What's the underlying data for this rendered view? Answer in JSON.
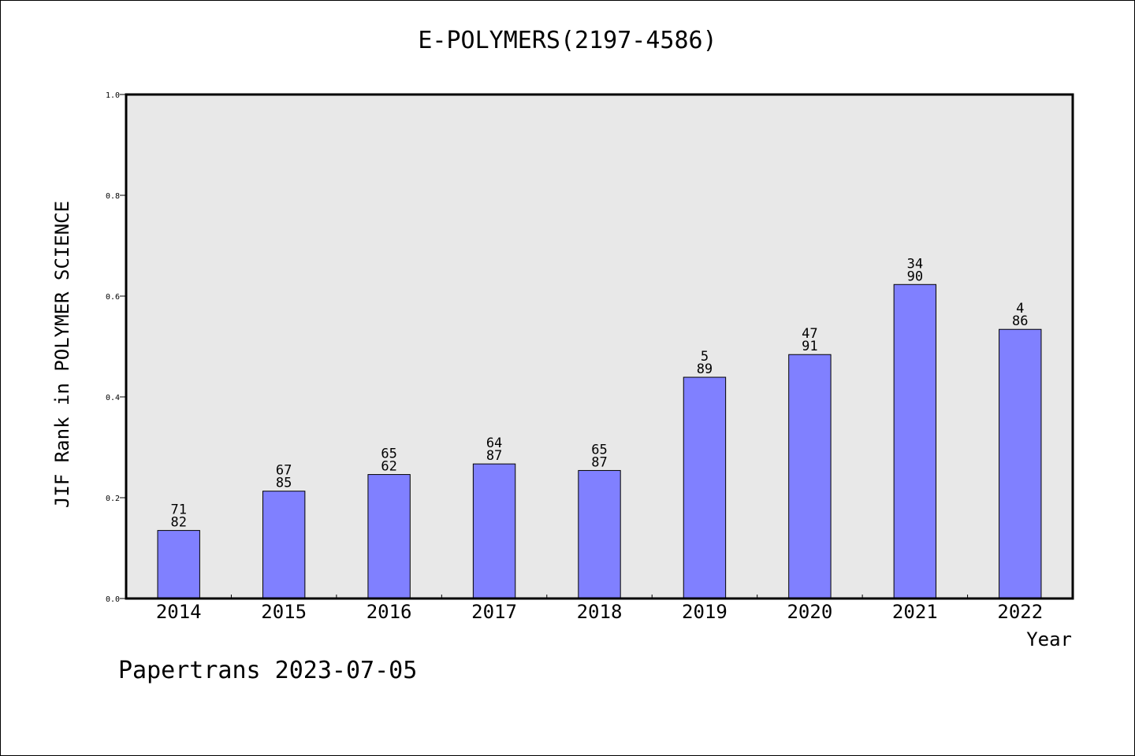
{
  "chart_data": {
    "type": "bar",
    "title": "E-POLYMERS(2197-4586)",
    "xlabel": "Year",
    "ylabel": "JIF Rank in POLYMER SCIENCE",
    "ylim": [
      0,
      1.0
    ],
    "yticks": [
      "0.0",
      "0.2",
      "0.4",
      "0.6",
      "0.8",
      "1.0"
    ],
    "ytick_values": [
      0,
      0.2,
      0.4,
      0.6,
      0.8,
      1.0
    ],
    "categories": [
      "2014",
      "2015",
      "2016",
      "2017",
      "2018",
      "2019",
      "2020",
      "2021",
      "2022"
    ],
    "values": [
      0.135,
      0.213,
      0.246,
      0.267,
      0.254,
      0.439,
      0.484,
      0.623,
      0.534
    ],
    "labels_top": [
      "71",
      "67",
      "65",
      "64",
      "65",
      "5",
      "47",
      "34",
      "4"
    ],
    "labels_bottom": [
      "82",
      "85",
      "62",
      "87",
      "87",
      "89",
      "91",
      "90",
      "86"
    ],
    "bar_color": "#8080ff",
    "plot_background": "#e8e8e8",
    "grid": false
  },
  "footer": "Papertrans 2023-07-05"
}
